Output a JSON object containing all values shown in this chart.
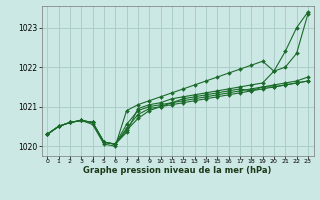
{
  "title": "Graphe pression niveau de la mer (hPa)",
  "background_color": "#cce8e4",
  "grid_color": "#aaceca",
  "line_color": "#1a6b2a",
  "x_ticks": [
    0,
    1,
    2,
    3,
    4,
    5,
    6,
    7,
    8,
    9,
    10,
    11,
    12,
    13,
    14,
    15,
    16,
    17,
    18,
    19,
    20,
    21,
    22,
    23
  ],
  "y_ticks": [
    1020,
    1021,
    1022,
    1023
  ],
  "ylim": [
    1019.75,
    1023.55
  ],
  "xlim": [
    -0.5,
    23.5
  ],
  "lines": [
    [
      1020.3,
      1020.5,
      1020.6,
      1020.65,
      1020.6,
      1020.1,
      1020.05,
      1020.35,
      1020.95,
      1021.05,
      1021.1,
      1021.2,
      1021.25,
      1021.3,
      1021.35,
      1021.4,
      1021.45,
      1021.5,
      1021.55,
      1021.6,
      1021.9,
      1022.0,
      1022.35,
      1023.35
    ],
    [
      1020.3,
      1020.5,
      1020.6,
      1020.65,
      1020.6,
      1020.1,
      1020.05,
      1020.55,
      1020.9,
      1021.0,
      1021.05,
      1021.1,
      1021.2,
      1021.25,
      1021.3,
      1021.35,
      1021.4,
      1021.45,
      1021.4,
      1021.5,
      1021.55,
      1021.6,
      1021.65,
      1021.75
    ],
    [
      1020.3,
      1020.5,
      1020.6,
      1020.65,
      1020.6,
      1020.1,
      1020.05,
      1020.45,
      1020.8,
      1020.95,
      1021.0,
      1021.1,
      1021.15,
      1021.2,
      1021.25,
      1021.3,
      1021.35,
      1021.4,
      1021.45,
      1021.5,
      1021.5,
      1021.55,
      1021.6,
      1021.65
    ],
    [
      1020.3,
      1020.5,
      1020.6,
      1020.65,
      1020.6,
      1020.1,
      1020.05,
      1020.4,
      1020.7,
      1020.9,
      1021.0,
      1021.05,
      1021.1,
      1021.15,
      1021.2,
      1021.25,
      1021.3,
      1021.35,
      1021.4,
      1021.45,
      1021.5,
      1021.55,
      1021.6,
      1021.65
    ],
    [
      1020.3,
      1020.5,
      1020.6,
      1020.65,
      1020.55,
      1020.05,
      1020.0,
      1020.9,
      1021.05,
      1021.15,
      1021.25,
      1021.35,
      1021.45,
      1021.55,
      1021.65,
      1021.75,
      1021.85,
      1021.95,
      1022.05,
      1022.15,
      1021.9,
      1022.4,
      1023.0,
      1023.4
    ]
  ]
}
